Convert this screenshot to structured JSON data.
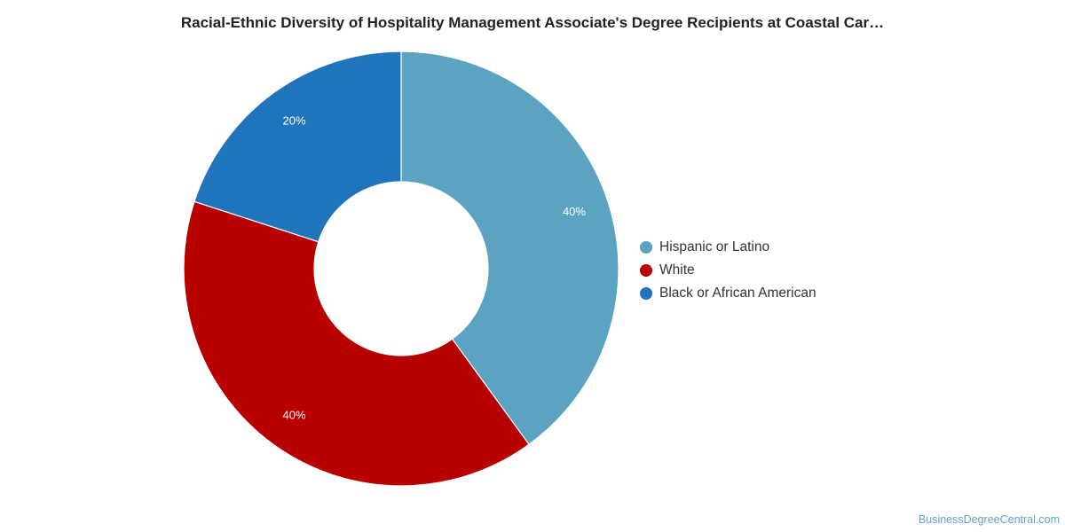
{
  "title": "Racial-Ethnic Diversity of Hospitality Management Associate's Degree Recipients at Coastal Car…",
  "watermark": "BusinessDegreeCentral.com",
  "chart_data": {
    "type": "pie",
    "variant": "donut",
    "title": "Racial-Ethnic Diversity of Hospitality Management Associate's Degree Recipients at Coastal Car…",
    "legend_position": "right",
    "slices": [
      {
        "label": "Hispanic or Latino",
        "value": 40,
        "display": "40%",
        "color": "#5ba3c0"
      },
      {
        "label": "White",
        "value": 40,
        "display": "40%",
        "color": "#b80000"
      },
      {
        "label": "Black or African American",
        "value": 20,
        "display": "20%",
        "color": "#1f74bb"
      }
    ]
  }
}
